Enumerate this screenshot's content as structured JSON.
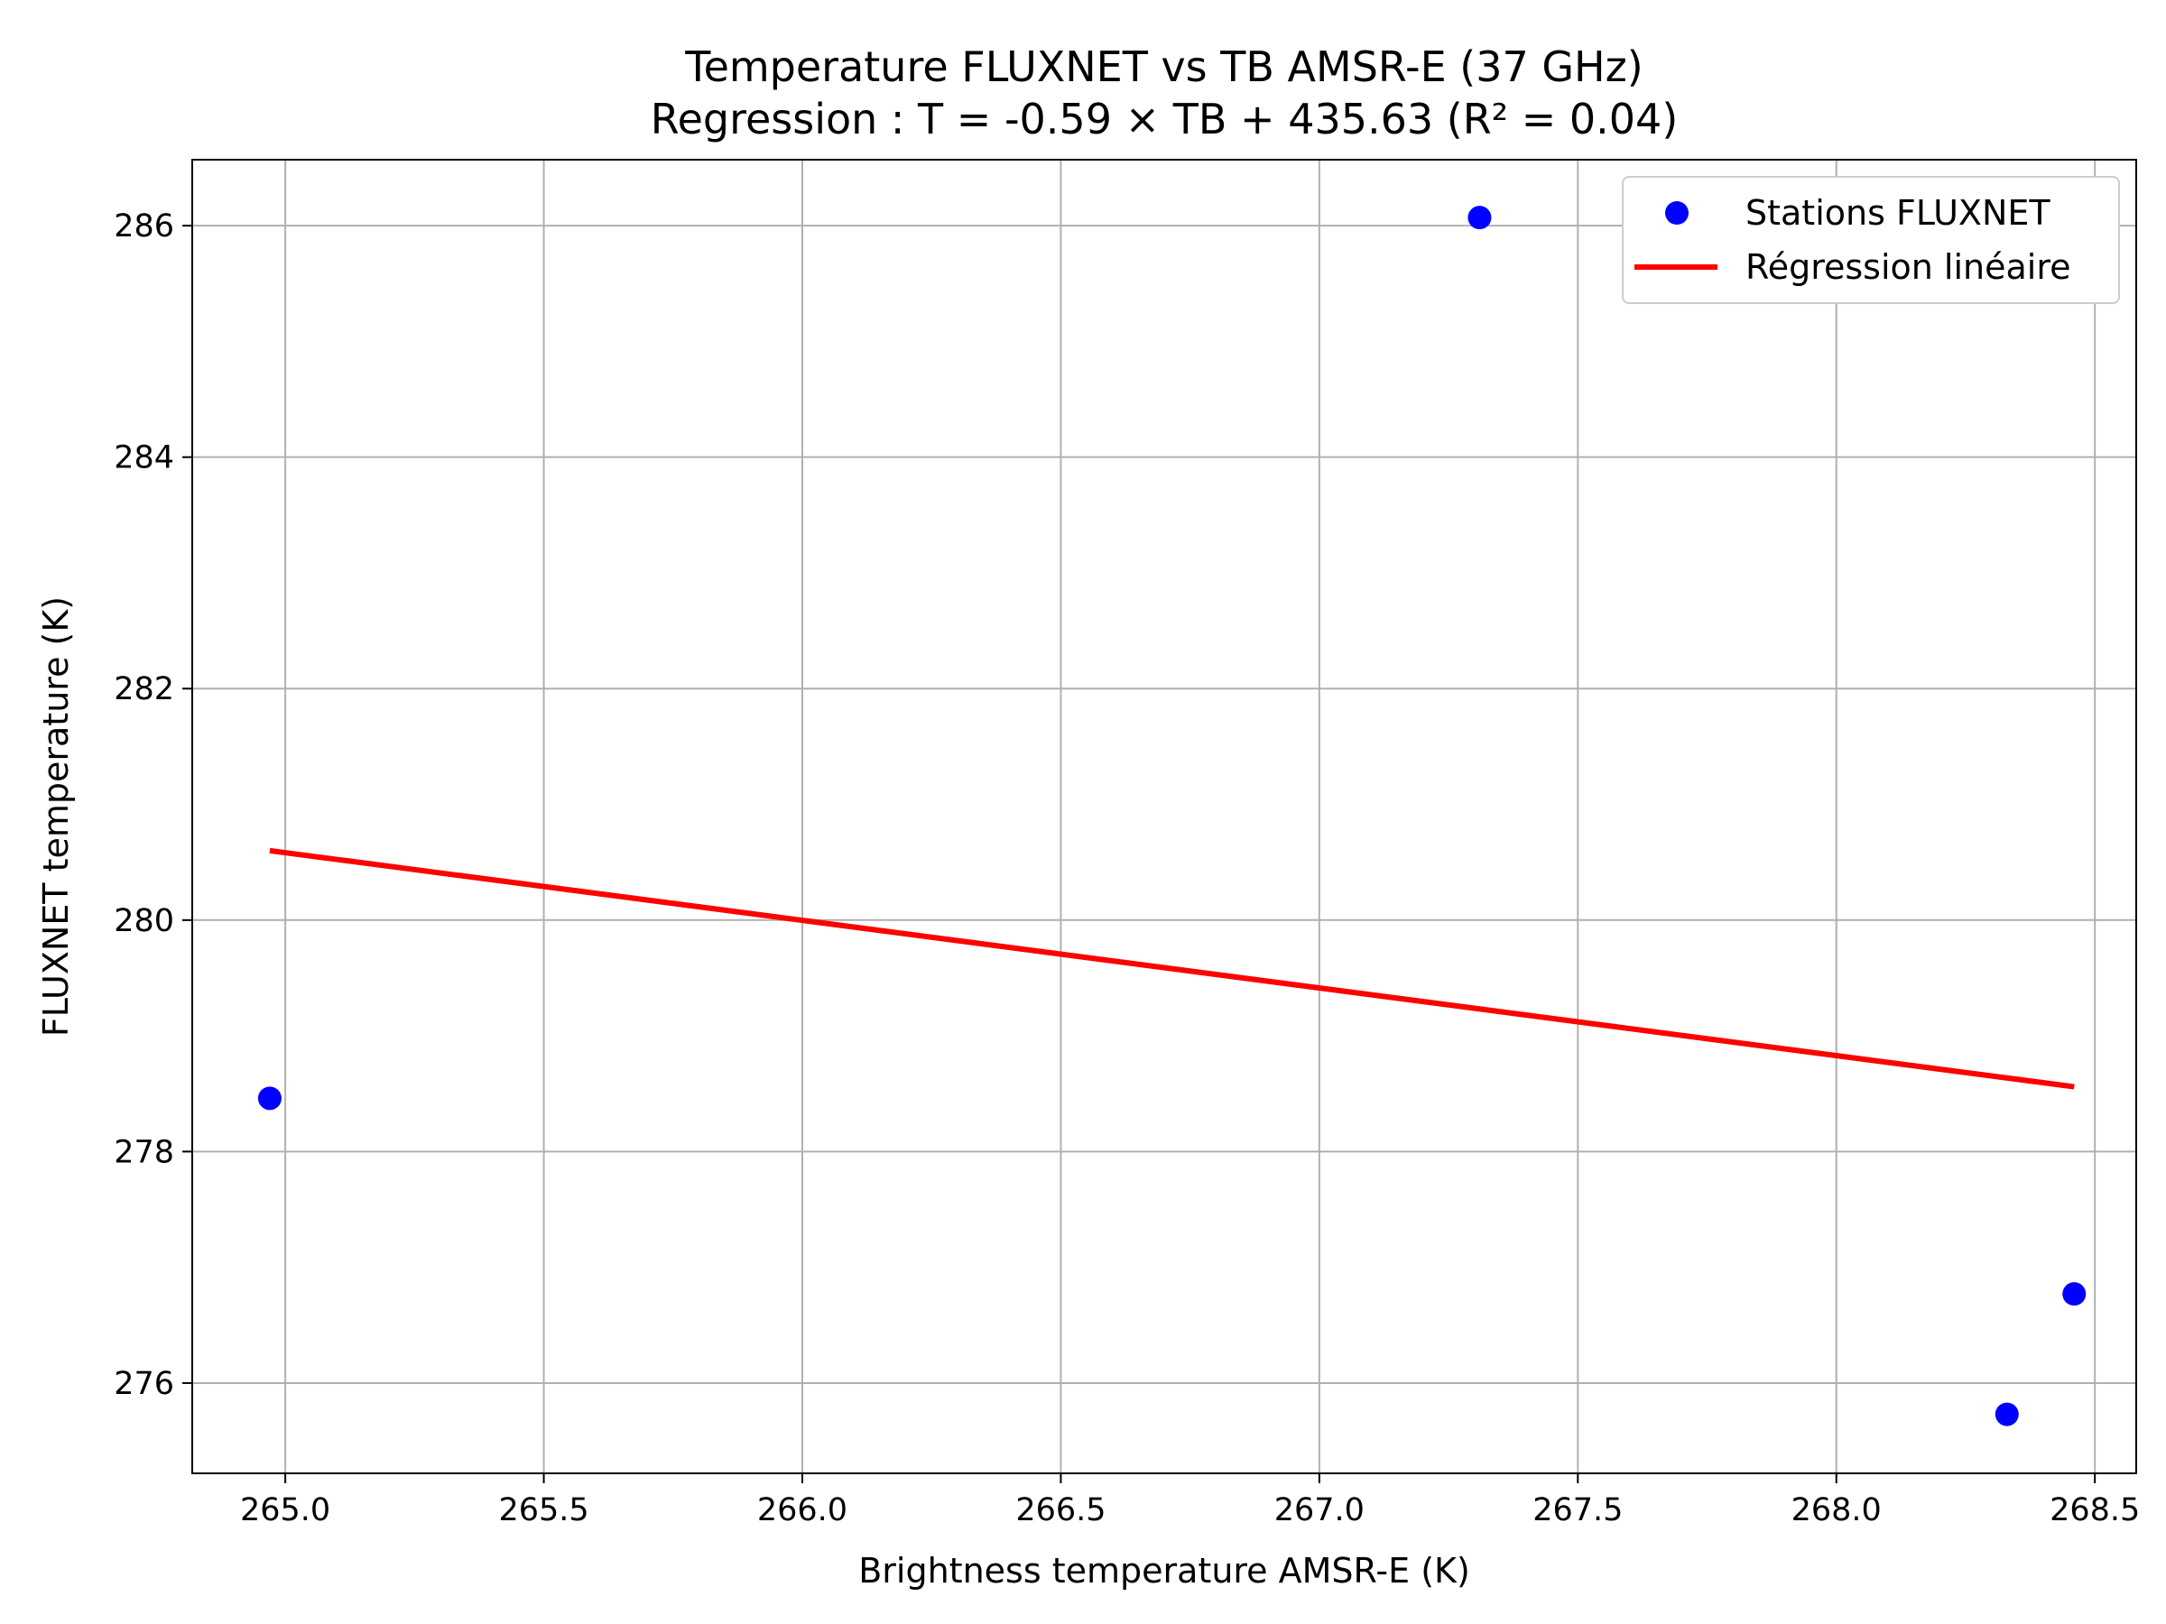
{
  "chart_data": {
    "type": "scatter",
    "title": "Temperature FLUXNET vs TB AMSR-E (37 GHz)",
    "subtitle": "Regression : T = -0.59 × TB + 435.63 (R² = 0.04)",
    "xlabel": "Brightness temperature AMSR-E (K)",
    "ylabel": "FLUXNET temperature (K)",
    "xlim": [
      264.82,
      268.58
    ],
    "ylim": [
      275.22,
      286.57
    ],
    "xticks": [
      265.0,
      265.5,
      266.0,
      266.5,
      267.0,
      267.5,
      268.0,
      268.5
    ],
    "xtick_labels": [
      "265.0",
      "265.5",
      "266.0",
      "266.5",
      "267.0",
      "267.5",
      "268.0",
      "268.5"
    ],
    "yticks": [
      276,
      278,
      280,
      282,
      284,
      286
    ],
    "ytick_labels": [
      "276",
      "278",
      "280",
      "282",
      "284",
      "286"
    ],
    "grid": true,
    "legend_position": "top-right",
    "series": [
      {
        "name": "Stations FLUXNET",
        "kind": "scatter",
        "color": "#0000ff",
        "points": [
          {
            "x": 264.97,
            "y": 278.46
          },
          {
            "x": 267.31,
            "y": 286.07
          },
          {
            "x": 268.33,
            "y": 275.73
          },
          {
            "x": 268.46,
            "y": 276.77
          }
        ]
      },
      {
        "name": "Régression linéaire",
        "kind": "line",
        "color": "#ff0000",
        "points": [
          {
            "x": 264.97,
            "y": 280.6
          },
          {
            "x": 268.46,
            "y": 278.56
          }
        ]
      }
    ]
  }
}
